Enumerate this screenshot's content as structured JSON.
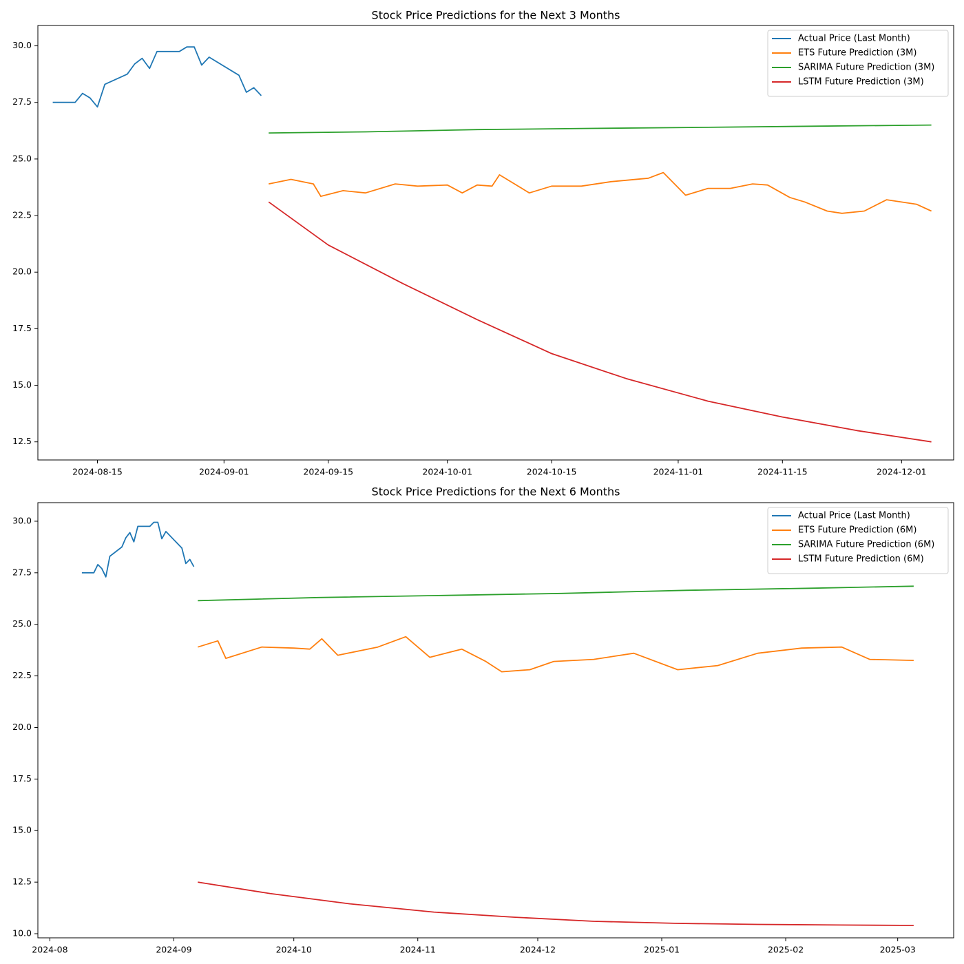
{
  "chart_data": [
    {
      "type": "line",
      "title": "Stock Price Predictions for the Next 3 Months",
      "xlabel": "",
      "ylabel": "",
      "xlim": [
        "2024-08-07",
        "2024-12-08"
      ],
      "ylim": [
        11.7,
        30.9
      ],
      "xticks": [
        "2024-08-15",
        "2024-09-01",
        "2024-09-15",
        "2024-10-01",
        "2024-10-15",
        "2024-11-01",
        "2024-11-15",
        "2024-12-01"
      ],
      "yticks": [
        "12.5",
        "15.0",
        "17.5",
        "20.0",
        "22.5",
        "25.0",
        "27.5",
        "30.0"
      ],
      "grid": false,
      "legend": "top-right",
      "series": [
        {
          "name": "Actual Price (Last Month)",
          "color": "#1f77b4",
          "x": [
            "2024-08-09",
            "2024-08-12",
            "2024-08-13",
            "2024-08-14",
            "2024-08-15",
            "2024-08-16",
            "2024-08-19",
            "2024-08-20",
            "2024-08-21",
            "2024-08-22",
            "2024-08-23",
            "2024-08-26",
            "2024-08-27",
            "2024-08-28",
            "2024-08-29",
            "2024-08-30",
            "2024-09-03",
            "2024-09-04",
            "2024-09-05",
            "2024-09-06"
          ],
          "values": [
            27.5,
            27.5,
            27.9,
            27.7,
            27.3,
            28.3,
            28.75,
            29.2,
            29.45,
            29.0,
            29.75,
            29.75,
            29.95,
            29.95,
            29.15,
            29.5,
            28.7,
            27.95,
            28.15,
            27.8
          ]
        },
        {
          "name": "ETS Future Prediction (3M)",
          "color": "#ff7f0e",
          "x": [
            "2024-09-07",
            "2024-09-10",
            "2024-09-13",
            "2024-09-14",
            "2024-09-17",
            "2024-09-20",
            "2024-09-24",
            "2024-09-27",
            "2024-10-01",
            "2024-10-03",
            "2024-10-05",
            "2024-10-07",
            "2024-10-08",
            "2024-10-12",
            "2024-10-15",
            "2024-10-19",
            "2024-10-23",
            "2024-10-28",
            "2024-10-30",
            "2024-11-02",
            "2024-11-05",
            "2024-11-08",
            "2024-11-11",
            "2024-11-13",
            "2024-11-16",
            "2024-11-18",
            "2024-11-21",
            "2024-11-23",
            "2024-11-26",
            "2024-11-29",
            "2024-12-03",
            "2024-12-05"
          ],
          "values": [
            23.9,
            24.1,
            23.9,
            23.35,
            23.6,
            23.5,
            23.9,
            23.8,
            23.85,
            23.5,
            23.85,
            23.8,
            24.3,
            23.5,
            23.8,
            23.8,
            24.0,
            24.15,
            24.4,
            23.4,
            23.7,
            23.7,
            23.9,
            23.85,
            23.3,
            23.1,
            22.7,
            22.6,
            22.7,
            23.2,
            23.0,
            22.7
          ]
        },
        {
          "name": "SARIMA Future Prediction (3M)",
          "color": "#2ca02c",
          "x": [
            "2024-09-07",
            "2024-09-20",
            "2024-10-05",
            "2024-10-20",
            "2024-11-05",
            "2024-11-20",
            "2024-12-05"
          ],
          "values": [
            26.15,
            26.2,
            26.3,
            26.35,
            26.4,
            26.45,
            26.5
          ]
        },
        {
          "name": "LSTM Future Prediction (3M)",
          "color": "#d62728",
          "x": [
            "2024-09-07",
            "2024-09-15",
            "2024-09-25",
            "2024-10-05",
            "2024-10-15",
            "2024-10-25",
            "2024-11-05",
            "2024-11-15",
            "2024-11-25",
            "2024-12-05"
          ],
          "values": [
            23.1,
            21.2,
            19.5,
            17.9,
            16.4,
            15.3,
            14.3,
            13.6,
            13.0,
            12.5
          ]
        }
      ]
    },
    {
      "type": "line",
      "title": "Stock Price Predictions for the Next 6 Months",
      "xlabel": "",
      "ylabel": "",
      "xlim": [
        "2024-07-29",
        "2025-03-15"
      ],
      "ylim": [
        9.8,
        30.9
      ],
      "xticks": [
        "2024-08",
        "2024-09",
        "2024-10",
        "2024-11",
        "2024-12",
        "2025-01",
        "2025-02",
        "2025-03"
      ],
      "yticks": [
        "10.0",
        "12.5",
        "15.0",
        "17.5",
        "20.0",
        "22.5",
        "25.0",
        "27.5",
        "30.0"
      ],
      "grid": false,
      "legend": "top-right",
      "series": [
        {
          "name": "Actual Price (Last Month)",
          "color": "#1f77b4",
          "x": [
            "2024-08-09",
            "2024-08-12",
            "2024-08-13",
            "2024-08-14",
            "2024-08-15",
            "2024-08-16",
            "2024-08-19",
            "2024-08-20",
            "2024-08-21",
            "2024-08-22",
            "2024-08-23",
            "2024-08-26",
            "2024-08-27",
            "2024-08-28",
            "2024-08-29",
            "2024-08-30",
            "2024-09-03",
            "2024-09-04",
            "2024-09-05",
            "2024-09-06"
          ],
          "values": [
            27.5,
            27.5,
            27.9,
            27.7,
            27.3,
            28.3,
            28.75,
            29.2,
            29.45,
            29.0,
            29.75,
            29.75,
            29.95,
            29.95,
            29.15,
            29.5,
            28.7,
            27.95,
            28.15,
            27.8
          ]
        },
        {
          "name": "ETS Future Prediction (6M)",
          "color": "#ff7f0e",
          "x": [
            "2024-09-07",
            "2024-09-12",
            "2024-09-14",
            "2024-09-23",
            "2024-10-01",
            "2024-10-05",
            "2024-10-08",
            "2024-10-12",
            "2024-10-22",
            "2024-10-29",
            "2024-11-04",
            "2024-11-12",
            "2024-11-18",
            "2024-11-22",
            "2024-11-29",
            "2024-12-05",
            "2024-12-15",
            "2024-12-25",
            "2025-01-05",
            "2025-01-15",
            "2025-01-25",
            "2025-02-05",
            "2025-02-15",
            "2025-02-22",
            "2025-03-05"
          ],
          "values": [
            23.9,
            24.2,
            23.35,
            23.9,
            23.85,
            23.8,
            24.3,
            23.5,
            23.9,
            24.4,
            23.4,
            23.8,
            23.2,
            22.7,
            22.8,
            23.2,
            23.3,
            23.6,
            22.8,
            23.0,
            23.6,
            23.85,
            23.9,
            23.3,
            23.25
          ]
        },
        {
          "name": "SARIMA Future Prediction (6M)",
          "color": "#2ca02c",
          "x": [
            "2024-09-07",
            "2024-10-07",
            "2024-11-07",
            "2024-12-07",
            "2025-01-07",
            "2025-02-07",
            "2025-03-05"
          ],
          "values": [
            26.15,
            26.3,
            26.4,
            26.5,
            26.65,
            26.75,
            26.85
          ]
        },
        {
          "name": "LSTM Future Prediction (6M)",
          "color": "#d62728",
          "x": [
            "2024-09-07",
            "2024-09-25",
            "2024-10-15",
            "2024-11-05",
            "2024-11-25",
            "2024-12-15",
            "2025-01-05",
            "2025-01-25",
            "2025-02-15",
            "2025-03-05"
          ],
          "values": [
            12.5,
            11.95,
            11.45,
            11.05,
            10.8,
            10.6,
            10.5,
            10.45,
            10.42,
            10.4
          ]
        }
      ]
    }
  ]
}
